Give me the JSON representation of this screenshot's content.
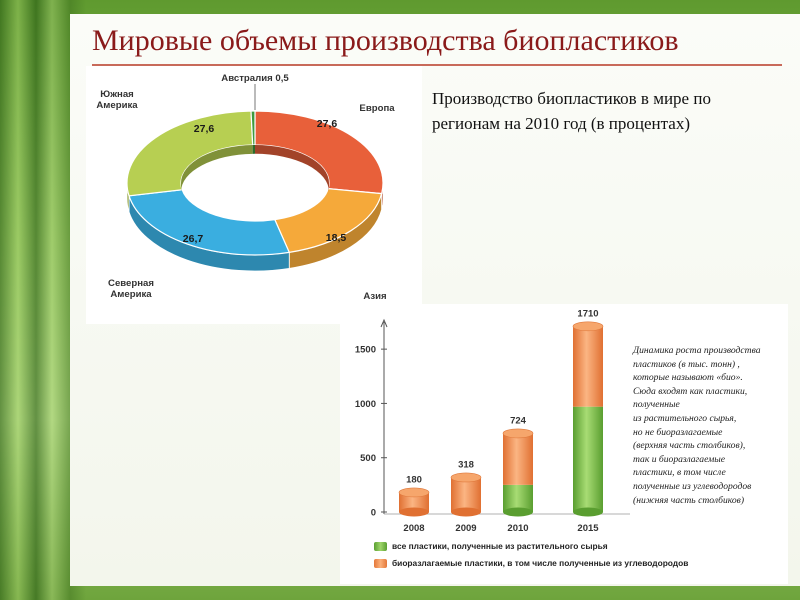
{
  "title": "Мировые объемы производства биопластиков",
  "subtitle": "Производство биопластиков в мире по регионам на 2010 год (в процентах)",
  "colors": {
    "europe": "#e8603a",
    "asia": "#f5a93a",
    "north_america": "#3aaee0",
    "south_america": "#b7cf52",
    "australia": "#3f9a3f",
    "bar_top": "#f39a5a",
    "bar_bottom": "#86c552"
  },
  "chart_data": [
    {
      "type": "pie",
      "title": "",
      "slices": [
        {
          "label": "Европа",
          "value": 27.6,
          "value_label": "27,6",
          "color": "#e8603a"
        },
        {
          "label": "Азия",
          "value": 18.5,
          "value_label": "18,5",
          "color": "#f5a93a"
        },
        {
          "label": "Северная Америка",
          "value": 26.7,
          "value_label": "26,7",
          "color": "#3aaee0"
        },
        {
          "label": "Южная Америка",
          "value": 27.6,
          "value_label": "27,6",
          "color": "#b7cf52"
        },
        {
          "label": "Австралия 0,5",
          "value": 0.5,
          "value_label": "",
          "color": "#3f9a3f"
        }
      ]
    },
    {
      "type": "bar",
      "stacked": true,
      "categories": [
        "2008",
        "2009",
        "2010",
        "2015"
      ],
      "series": [
        {
          "name": "все пластики, полученные из растительного сырья",
          "values": [
            0,
            0,
            250,
            970
          ],
          "color": "#86c552"
        },
        {
          "name": "биоразлагаемые пластики, в том числе полученные из углеводородов",
          "values": [
            180,
            318,
            474,
            740
          ],
          "color": "#f39a5a"
        }
      ],
      "totals": [
        180,
        318,
        724,
        1710
      ],
      "total_labels": [
        "180",
        "318",
        "724",
        "1710"
      ],
      "ylim": [
        0,
        1750
      ],
      "yticks": [
        0,
        500,
        1000,
        1500
      ],
      "ytick_labels": [
        "0",
        "500",
        "1000",
        "1500"
      ],
      "description": [
        "Динамика роста производства",
        "пластиков (в тыс. тонн) ,",
        "которые называют «био».",
        "Сюда входят как пластики,",
        "полученные",
        "из растительного сырья,",
        "но не биоразлагаемые",
        "(верхняя часть столбиков),",
        "так и биоразлагаемые",
        "пластики, в том числе",
        "полученные из углеводородов",
        "(нижняя часть столбиков)"
      ]
    }
  ]
}
